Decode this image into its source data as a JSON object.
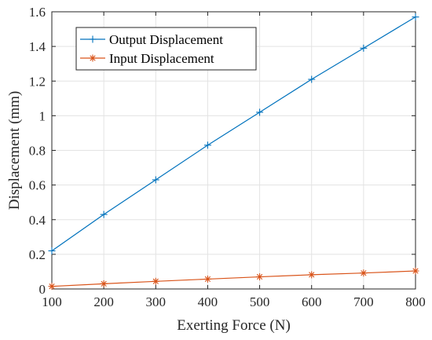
{
  "chart_data": {
    "type": "line",
    "title": "",
    "xlabel": "Exerting Force (N)",
    "ylabel": "Displacement (mm)",
    "xlim": [
      100,
      800
    ],
    "ylim": [
      0,
      1.6
    ],
    "xticks": [
      100,
      200,
      300,
      400,
      500,
      600,
      700,
      800
    ],
    "yticks": [
      0,
      0.2,
      0.4,
      0.6,
      0.8,
      1,
      1.2,
      1.4,
      1.6
    ],
    "x": [
      100,
      200,
      300,
      400,
      500,
      600,
      700,
      800
    ],
    "grid": true,
    "legend_position": "top-left",
    "series": [
      {
        "name": "Output Displacement",
        "marker": "plus",
        "color": "#0072BD",
        "values": [
          0.22,
          0.43,
          0.63,
          0.83,
          1.02,
          1.21,
          1.39,
          1.57
        ]
      },
      {
        "name": "Input Displacement",
        "marker": "asterisk",
        "color": "#D95319",
        "values": [
          0.015,
          0.03,
          0.044,
          0.057,
          0.07,
          0.082,
          0.092,
          0.104
        ]
      }
    ]
  }
}
